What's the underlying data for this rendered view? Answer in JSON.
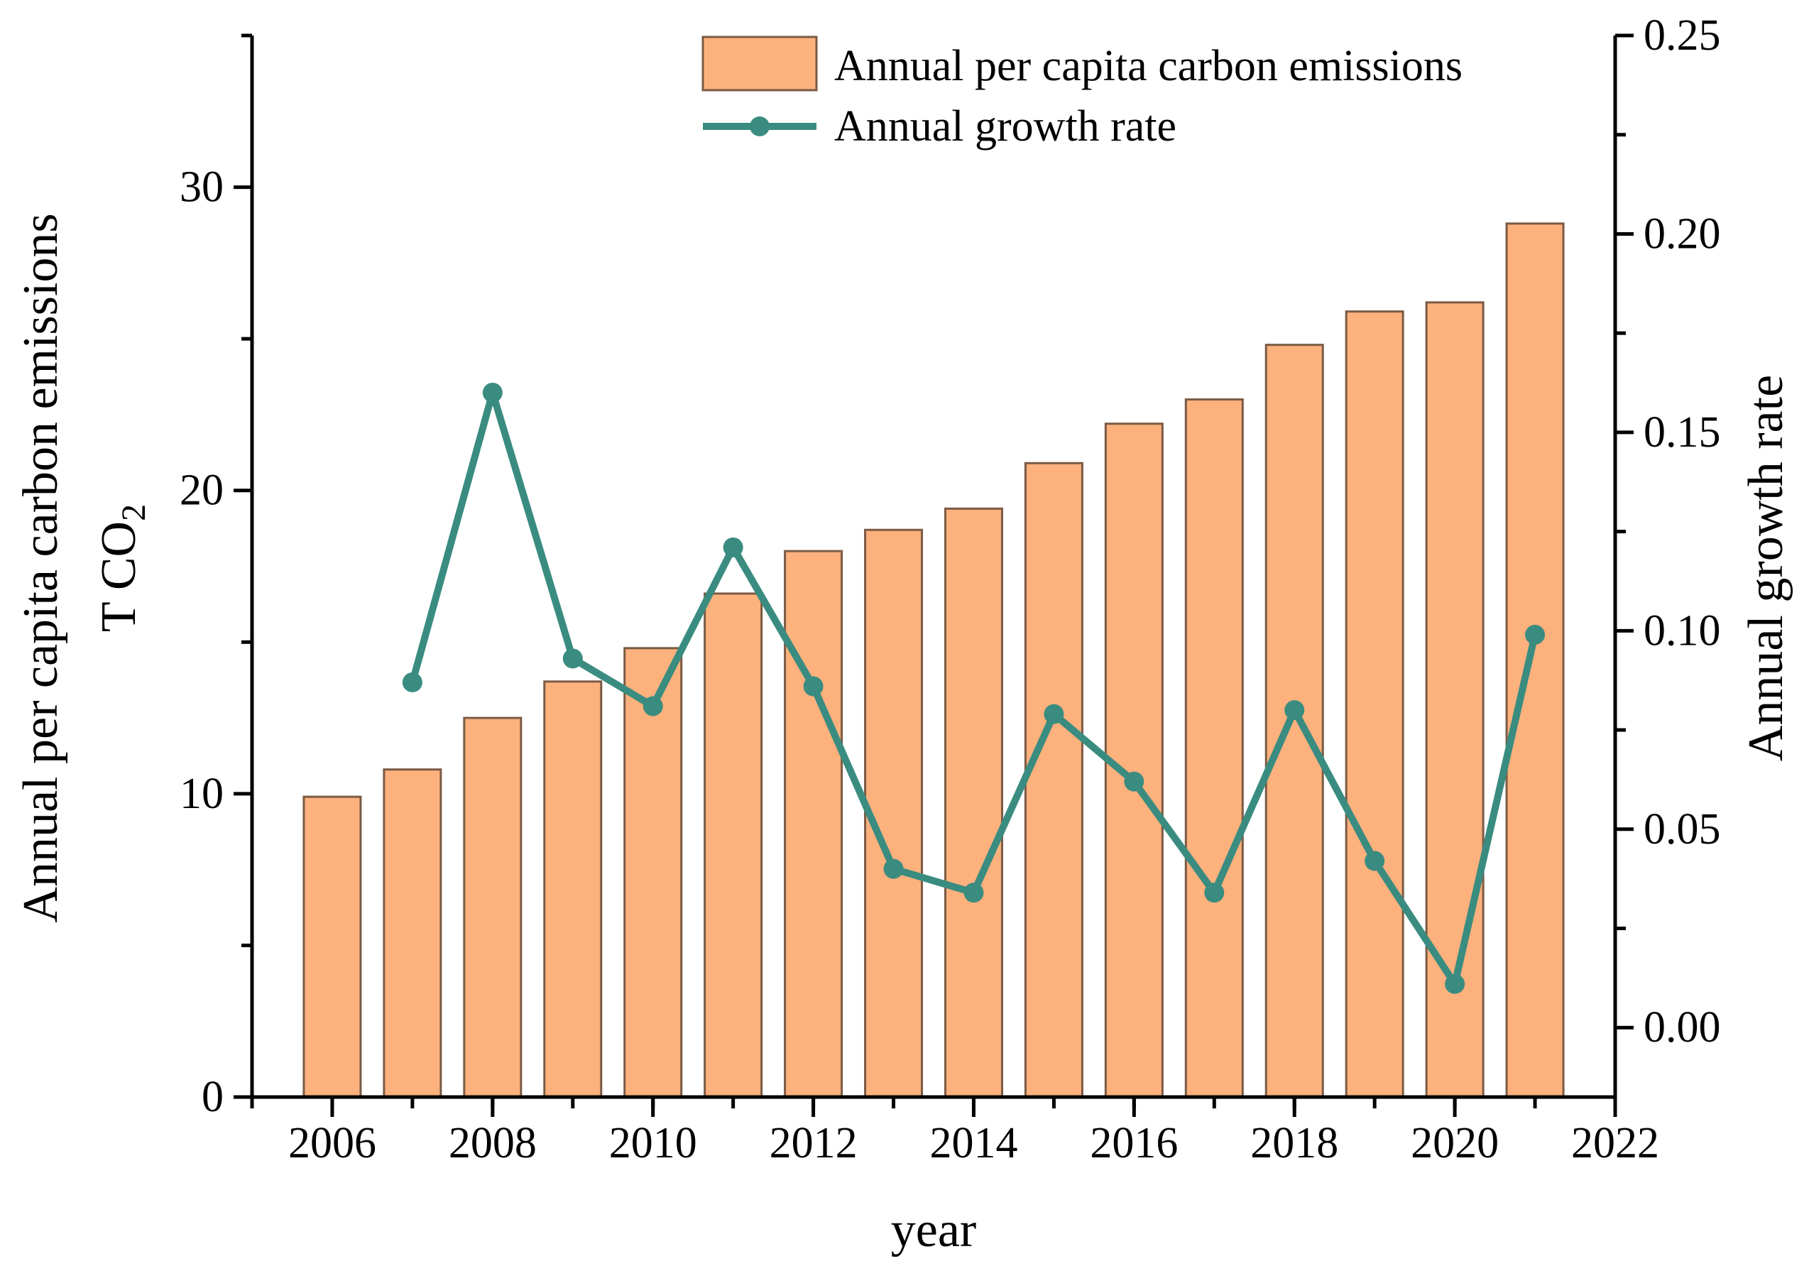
{
  "chart_data": {
    "type": "bar+line",
    "categories": [
      "2006",
      "2007",
      "2008",
      "2009",
      "2010",
      "2011",
      "2012",
      "2013",
      "2014",
      "2015",
      "2016",
      "2017",
      "2018",
      "2019",
      "2020",
      "2021"
    ],
    "series": [
      {
        "name": "Annual per capita carbon emissions",
        "type": "bar",
        "axis": "left",
        "color": "#fdb17d",
        "values": [
          9.9,
          10.8,
          12.5,
          13.7,
          14.8,
          16.6,
          18.0,
          18.7,
          19.4,
          20.9,
          22.2,
          23.0,
          24.8,
          25.9,
          26.2,
          28.8
        ]
      },
      {
        "name": "Annual growth rate",
        "type": "line",
        "axis": "right",
        "color": "#3a8c80",
        "x": [
          "2007",
          "2008",
          "2009",
          "2010",
          "2011",
          "2012",
          "2013",
          "2014",
          "2015",
          "2016",
          "2017",
          "2018",
          "2019",
          "2020",
          "2021"
        ],
        "values": [
          0.087,
          0.16,
          0.093,
          0.081,
          0.121,
          0.086,
          0.04,
          0.034,
          0.079,
          0.062,
          0.034,
          0.08,
          0.042,
          0.011,
          0.099
        ]
      }
    ],
    "xlabel": "year",
    "ylabel_left_line1": "Annual per capita carbon emissions",
    "ylabel_left_line2": "T CO",
    "ylabel_left_subscript": "2",
    "ylabel_right": "Annual growth rate",
    "x_range": [
      2005,
      2022
    ],
    "x_ticks": [
      "2006",
      "2008",
      "2010",
      "2012",
      "2014",
      "2016",
      "2018",
      "2020",
      "2022"
    ],
    "ylim_left": [
      0,
      35
    ],
    "yticks_left": [
      "0",
      "10",
      "20",
      "30"
    ],
    "ylim_right": [
      -0.0175,
      0.25
    ],
    "yticks_right": [
      "0.00",
      "0.05",
      "0.10",
      "0.15",
      "0.20",
      "0.25"
    ],
    "legend_position": "top-right",
    "grid": false
  }
}
